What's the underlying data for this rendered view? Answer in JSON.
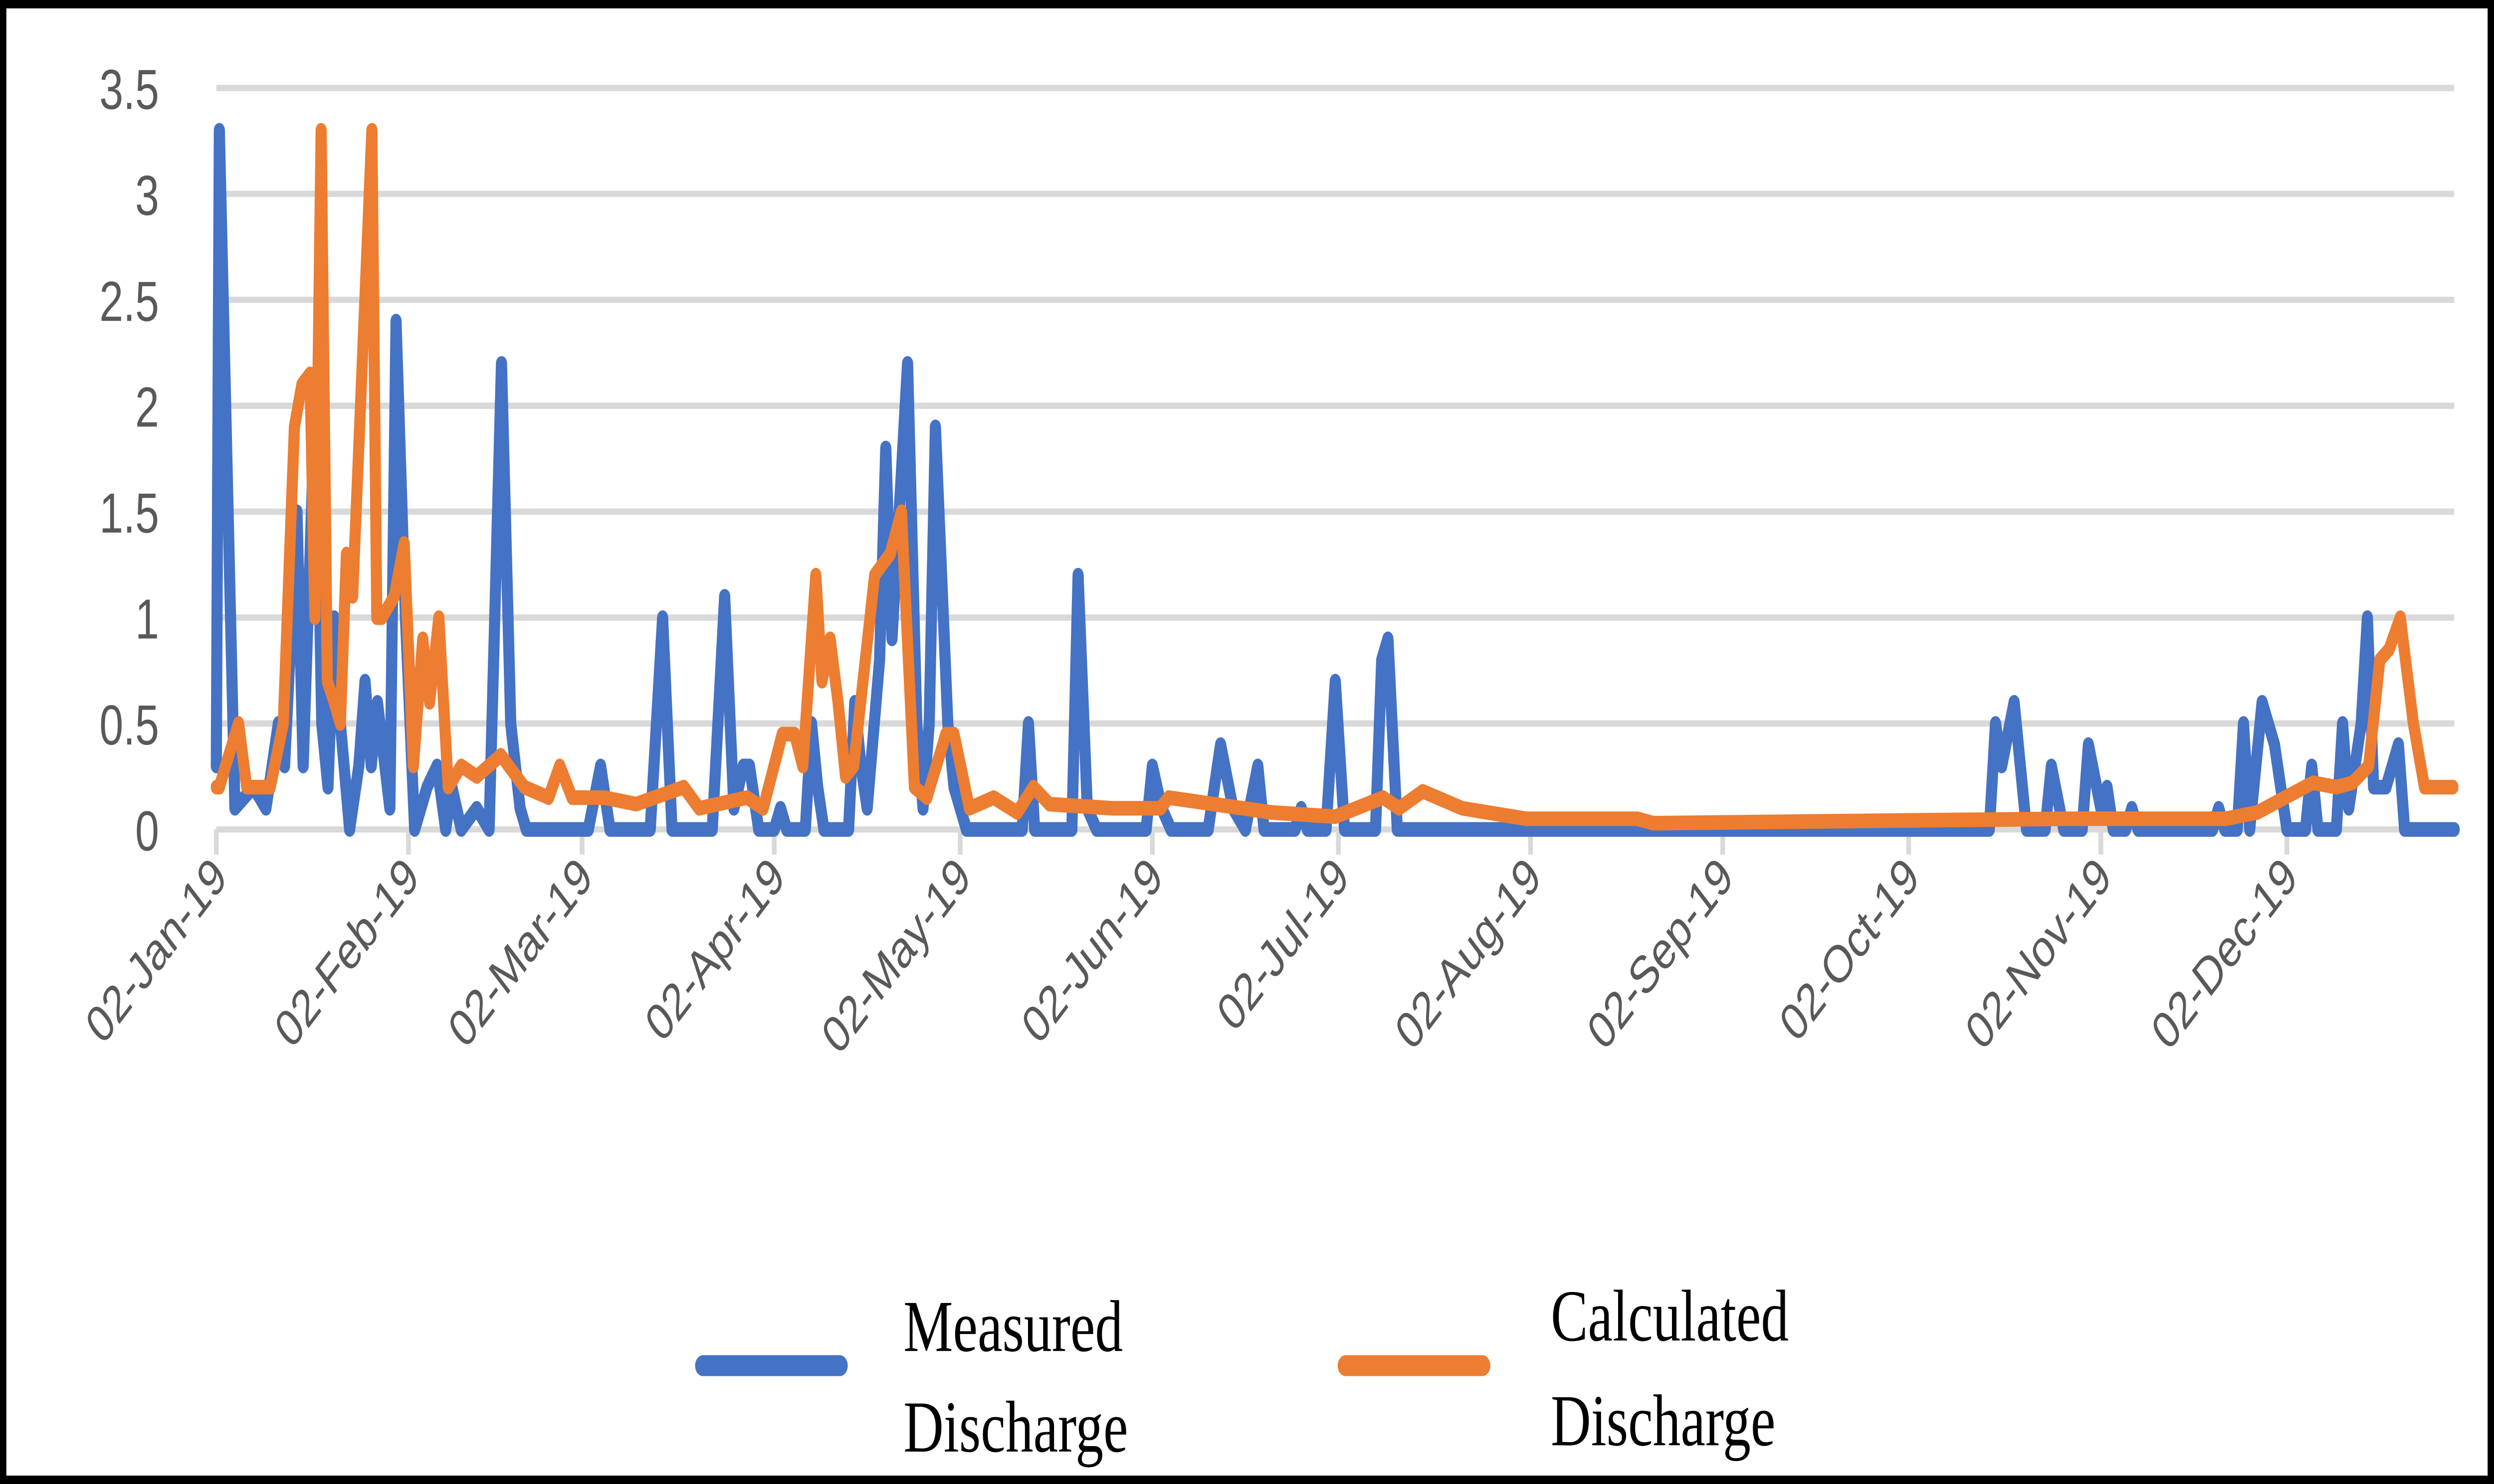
{
  "chart_data": {
    "type": "line",
    "title": "",
    "xlabel": "",
    "ylabel": "",
    "ylim": [
      0,
      3.5
    ],
    "yticks": [
      "0",
      "0.5",
      "1",
      "1.5",
      "2",
      "2.5",
      "3",
      "3.5"
    ],
    "ytick_values": [
      0,
      0.5,
      1,
      1.5,
      2,
      2.5,
      3,
      3.5
    ],
    "x_unit": "days since 02-Jan-19",
    "xlim": [
      0,
      361
    ],
    "xticks": [
      "02-Jan-19",
      "02-Feb-19",
      "02-Mar-19",
      "02-Apr-19",
      "02-May-19",
      "02-Jun-19",
      "02-Jul-19",
      "02-Aug-19",
      "02-Sep-19",
      "02-Oct-19",
      "02-Nov-19",
      "02-Dec-19"
    ],
    "xtick_values": [
      0,
      31,
      59,
      90,
      120,
      151,
      181,
      212,
      243,
      273,
      304,
      334
    ],
    "grid": true,
    "legend_position": "bottom",
    "series": [
      {
        "name": "Measured Discharge",
        "legend_line1": "Measured",
        "legend_line2": "Discharge",
        "color": "#4472c4",
        "points": [
          [
            0,
            0.3
          ],
          [
            0.5,
            3.3
          ],
          [
            3,
            0.1
          ],
          [
            6,
            0.2
          ],
          [
            8,
            0.1
          ],
          [
            10,
            0.5
          ],
          [
            11,
            0.3
          ],
          [
            13,
            1.5
          ],
          [
            14,
            0.3
          ],
          [
            16,
            2.1
          ],
          [
            17,
            0.5
          ],
          [
            18,
            0.2
          ],
          [
            19,
            1.0
          ],
          [
            20,
            0.5
          ],
          [
            21.5,
            0
          ],
          [
            23,
            0.3
          ],
          [
            24,
            0.7
          ],
          [
            25,
            0.3
          ],
          [
            26,
            0.6
          ],
          [
            28,
            0.1
          ],
          [
            29,
            2.4
          ],
          [
            30.5,
            1.0
          ],
          [
            32,
            0
          ],
          [
            34,
            0.2
          ],
          [
            35.6,
            0.3
          ],
          [
            37,
            0
          ],
          [
            38,
            0.2
          ],
          [
            39.5,
            0
          ],
          [
            42,
            0.1
          ],
          [
            44,
            0
          ],
          [
            46,
            2.2
          ],
          [
            47.5,
            0.5
          ],
          [
            49,
            0.1
          ],
          [
            50,
            0
          ],
          [
            60,
            0
          ],
          [
            62,
            0.3
          ],
          [
            63.5,
            0
          ],
          [
            70,
            0
          ],
          [
            72,
            1.0
          ],
          [
            73.5,
            0
          ],
          [
            80,
            0
          ],
          [
            82,
            1.1
          ],
          [
            83.5,
            0.1
          ],
          [
            85,
            0.3
          ],
          [
            86,
            0.3
          ],
          [
            87.5,
            0
          ],
          [
            90,
            0
          ],
          [
            91,
            0.1
          ],
          [
            92,
            0
          ],
          [
            95,
            0
          ],
          [
            96,
            0.5
          ],
          [
            97,
            0.2
          ],
          [
            98,
            0
          ],
          [
            102,
            0
          ],
          [
            103,
            0.6
          ],
          [
            104,
            0.3
          ],
          [
            105,
            0.1
          ],
          [
            107,
            0.8
          ],
          [
            108,
            1.8
          ],
          [
            109,
            0.9
          ],
          [
            111.5,
            2.2
          ],
          [
            113,
            0.5
          ],
          [
            114,
            0.1
          ],
          [
            115,
            0.5
          ],
          [
            116,
            1.9
          ],
          [
            118,
            0.5
          ],
          [
            119,
            0.2
          ],
          [
            121,
            0
          ],
          [
            130,
            0
          ],
          [
            131,
            0.5
          ],
          [
            132,
            0
          ],
          [
            138,
            0
          ],
          [
            139,
            1.2
          ],
          [
            140.5,
            0.1
          ],
          [
            142,
            0
          ],
          [
            150,
            0
          ],
          [
            151,
            0.3
          ],
          [
            152.5,
            0.1
          ],
          [
            154,
            0
          ],
          [
            160,
            0
          ],
          [
            162,
            0.4
          ],
          [
            164,
            0.1
          ],
          [
            166,
            0
          ],
          [
            168,
            0.3
          ],
          [
            169,
            0
          ],
          [
            174,
            0
          ],
          [
            175,
            0.1
          ],
          [
            176,
            0
          ],
          [
            179,
            0
          ],
          [
            180.5,
            0.7
          ],
          [
            182,
            0
          ],
          [
            187,
            0
          ],
          [
            188,
            0.8
          ],
          [
            189,
            0.9
          ],
          [
            190.5,
            0
          ],
          [
            286,
            0
          ],
          [
            287,
            0.5
          ],
          [
            288,
            0.3
          ],
          [
            290,
            0.6
          ],
          [
            292,
            0
          ],
          [
            295,
            0
          ],
          [
            296,
            0.3
          ],
          [
            298,
            0
          ],
          [
            301,
            0
          ],
          [
            302,
            0.4
          ],
          [
            304,
            0.1
          ],
          [
            305,
            0.2
          ],
          [
            306,
            0
          ],
          [
            308,
            0
          ],
          [
            309,
            0.1
          ],
          [
            310,
            0
          ],
          [
            322,
            0
          ],
          [
            323,
            0.1
          ],
          [
            324,
            0
          ],
          [
            326,
            0
          ],
          [
            327,
            0.5
          ],
          [
            328,
            0
          ],
          [
            330,
            0.6
          ],
          [
            332,
            0.4
          ],
          [
            334,
            0
          ],
          [
            337,
            0
          ],
          [
            338,
            0.3
          ],
          [
            339,
            0
          ],
          [
            342,
            0
          ],
          [
            343,
            0.5
          ],
          [
            344,
            0.1
          ],
          [
            346,
            0.5
          ],
          [
            347,
            1.0
          ],
          [
            348,
            0.2
          ],
          [
            350,
            0.2
          ],
          [
            352,
            0.4
          ],
          [
            353,
            0
          ],
          [
            361,
            0
          ]
        ]
      },
      {
        "name": "Calculated Discharge",
        "legend_line1": "Calculated",
        "legend_line2": "Discharge",
        "color": "#ed7d31",
        "points": [
          [
            0,
            0.2
          ],
          [
            0.5,
            0.2
          ],
          [
            1.5,
            0.3
          ],
          [
            3.6,
            0.5
          ],
          [
            4.9,
            0.2
          ],
          [
            8.7,
            0.2
          ],
          [
            10.8,
            0.5
          ],
          [
            12.6,
            1.9
          ],
          [
            13.8,
            2.1
          ],
          [
            15.1,
            2.15
          ],
          [
            15.9,
            1.0
          ],
          [
            16.9,
            3.3
          ],
          [
            17.9,
            0.7
          ],
          [
            19,
            0.6
          ],
          [
            20,
            0.5
          ],
          [
            21,
            1.3
          ],
          [
            22,
            1.1
          ],
          [
            25.1,
            3.3
          ],
          [
            25.9,
            1.0
          ],
          [
            26.7,
            1.0
          ],
          [
            28.7,
            1.1
          ],
          [
            30.3,
            1.35
          ],
          [
            31.8,
            0.3
          ],
          [
            33.3,
            0.9
          ],
          [
            34.4,
            0.6
          ],
          [
            35.9,
            1.0
          ],
          [
            37.4,
            0.2
          ],
          [
            39.5,
            0.3
          ],
          [
            42,
            0.25
          ],
          [
            45.9,
            0.35
          ],
          [
            49.7,
            0.2
          ],
          [
            53.6,
            0.15
          ],
          [
            55.4,
            0.3
          ],
          [
            57.4,
            0.15
          ],
          [
            62.6,
            0.15
          ],
          [
            67.7,
            0.12
          ],
          [
            75.4,
            0.2
          ],
          [
            77.9,
            0.1
          ],
          [
            85.6,
            0.15
          ],
          [
            88.2,
            0.1
          ],
          [
            91.3,
            0.45
          ],
          [
            93.3,
            0.45
          ],
          [
            94.6,
            0.3
          ],
          [
            96.7,
            1.2
          ],
          [
            97.7,
            0.7
          ],
          [
            99,
            0.9
          ],
          [
            100.3,
            0.6
          ],
          [
            101.5,
            0.25
          ],
          [
            102.8,
            0.3
          ],
          [
            106.2,
            1.2
          ],
          [
            107.4,
            1.25
          ],
          [
            108.7,
            1.3
          ],
          [
            110.5,
            1.5
          ],
          [
            112.6,
            0.2
          ],
          [
            114.6,
            0.15
          ],
          [
            117.7,
            0.45
          ],
          [
            119,
            0.45
          ],
          [
            121.5,
            0.1
          ],
          [
            125.4,
            0.15
          ],
          [
            129.2,
            0.08
          ],
          [
            131.8,
            0.2
          ],
          [
            134.4,
            0.12
          ],
          [
            144.6,
            0.1
          ],
          [
            152.3,
            0.1
          ],
          [
            153.6,
            0.15
          ],
          [
            170.3,
            0.08
          ],
          [
            180.5,
            0.06
          ],
          [
            188.2,
            0.15
          ],
          [
            190.8,
            0.1
          ],
          [
            194.6,
            0.18
          ],
          [
            201,
            0.1
          ],
          [
            211.3,
            0.05
          ],
          [
            229.2,
            0.05
          ],
          [
            231.8,
            0.03
          ],
          [
            298.5,
            0.05
          ],
          [
            324.1,
            0.05
          ],
          [
            329.2,
            0.08
          ],
          [
            338.2,
            0.22
          ],
          [
            342,
            0.2
          ],
          [
            344.6,
            0.22
          ],
          [
            347.2,
            0.3
          ],
          [
            349,
            0.8
          ],
          [
            350.5,
            0.85
          ],
          [
            352.3,
            1.0
          ],
          [
            354.4,
            0.5
          ],
          [
            356.2,
            0.2
          ],
          [
            358,
            0.2
          ],
          [
            360.8,
            0.2
          ]
        ]
      }
    ]
  }
}
